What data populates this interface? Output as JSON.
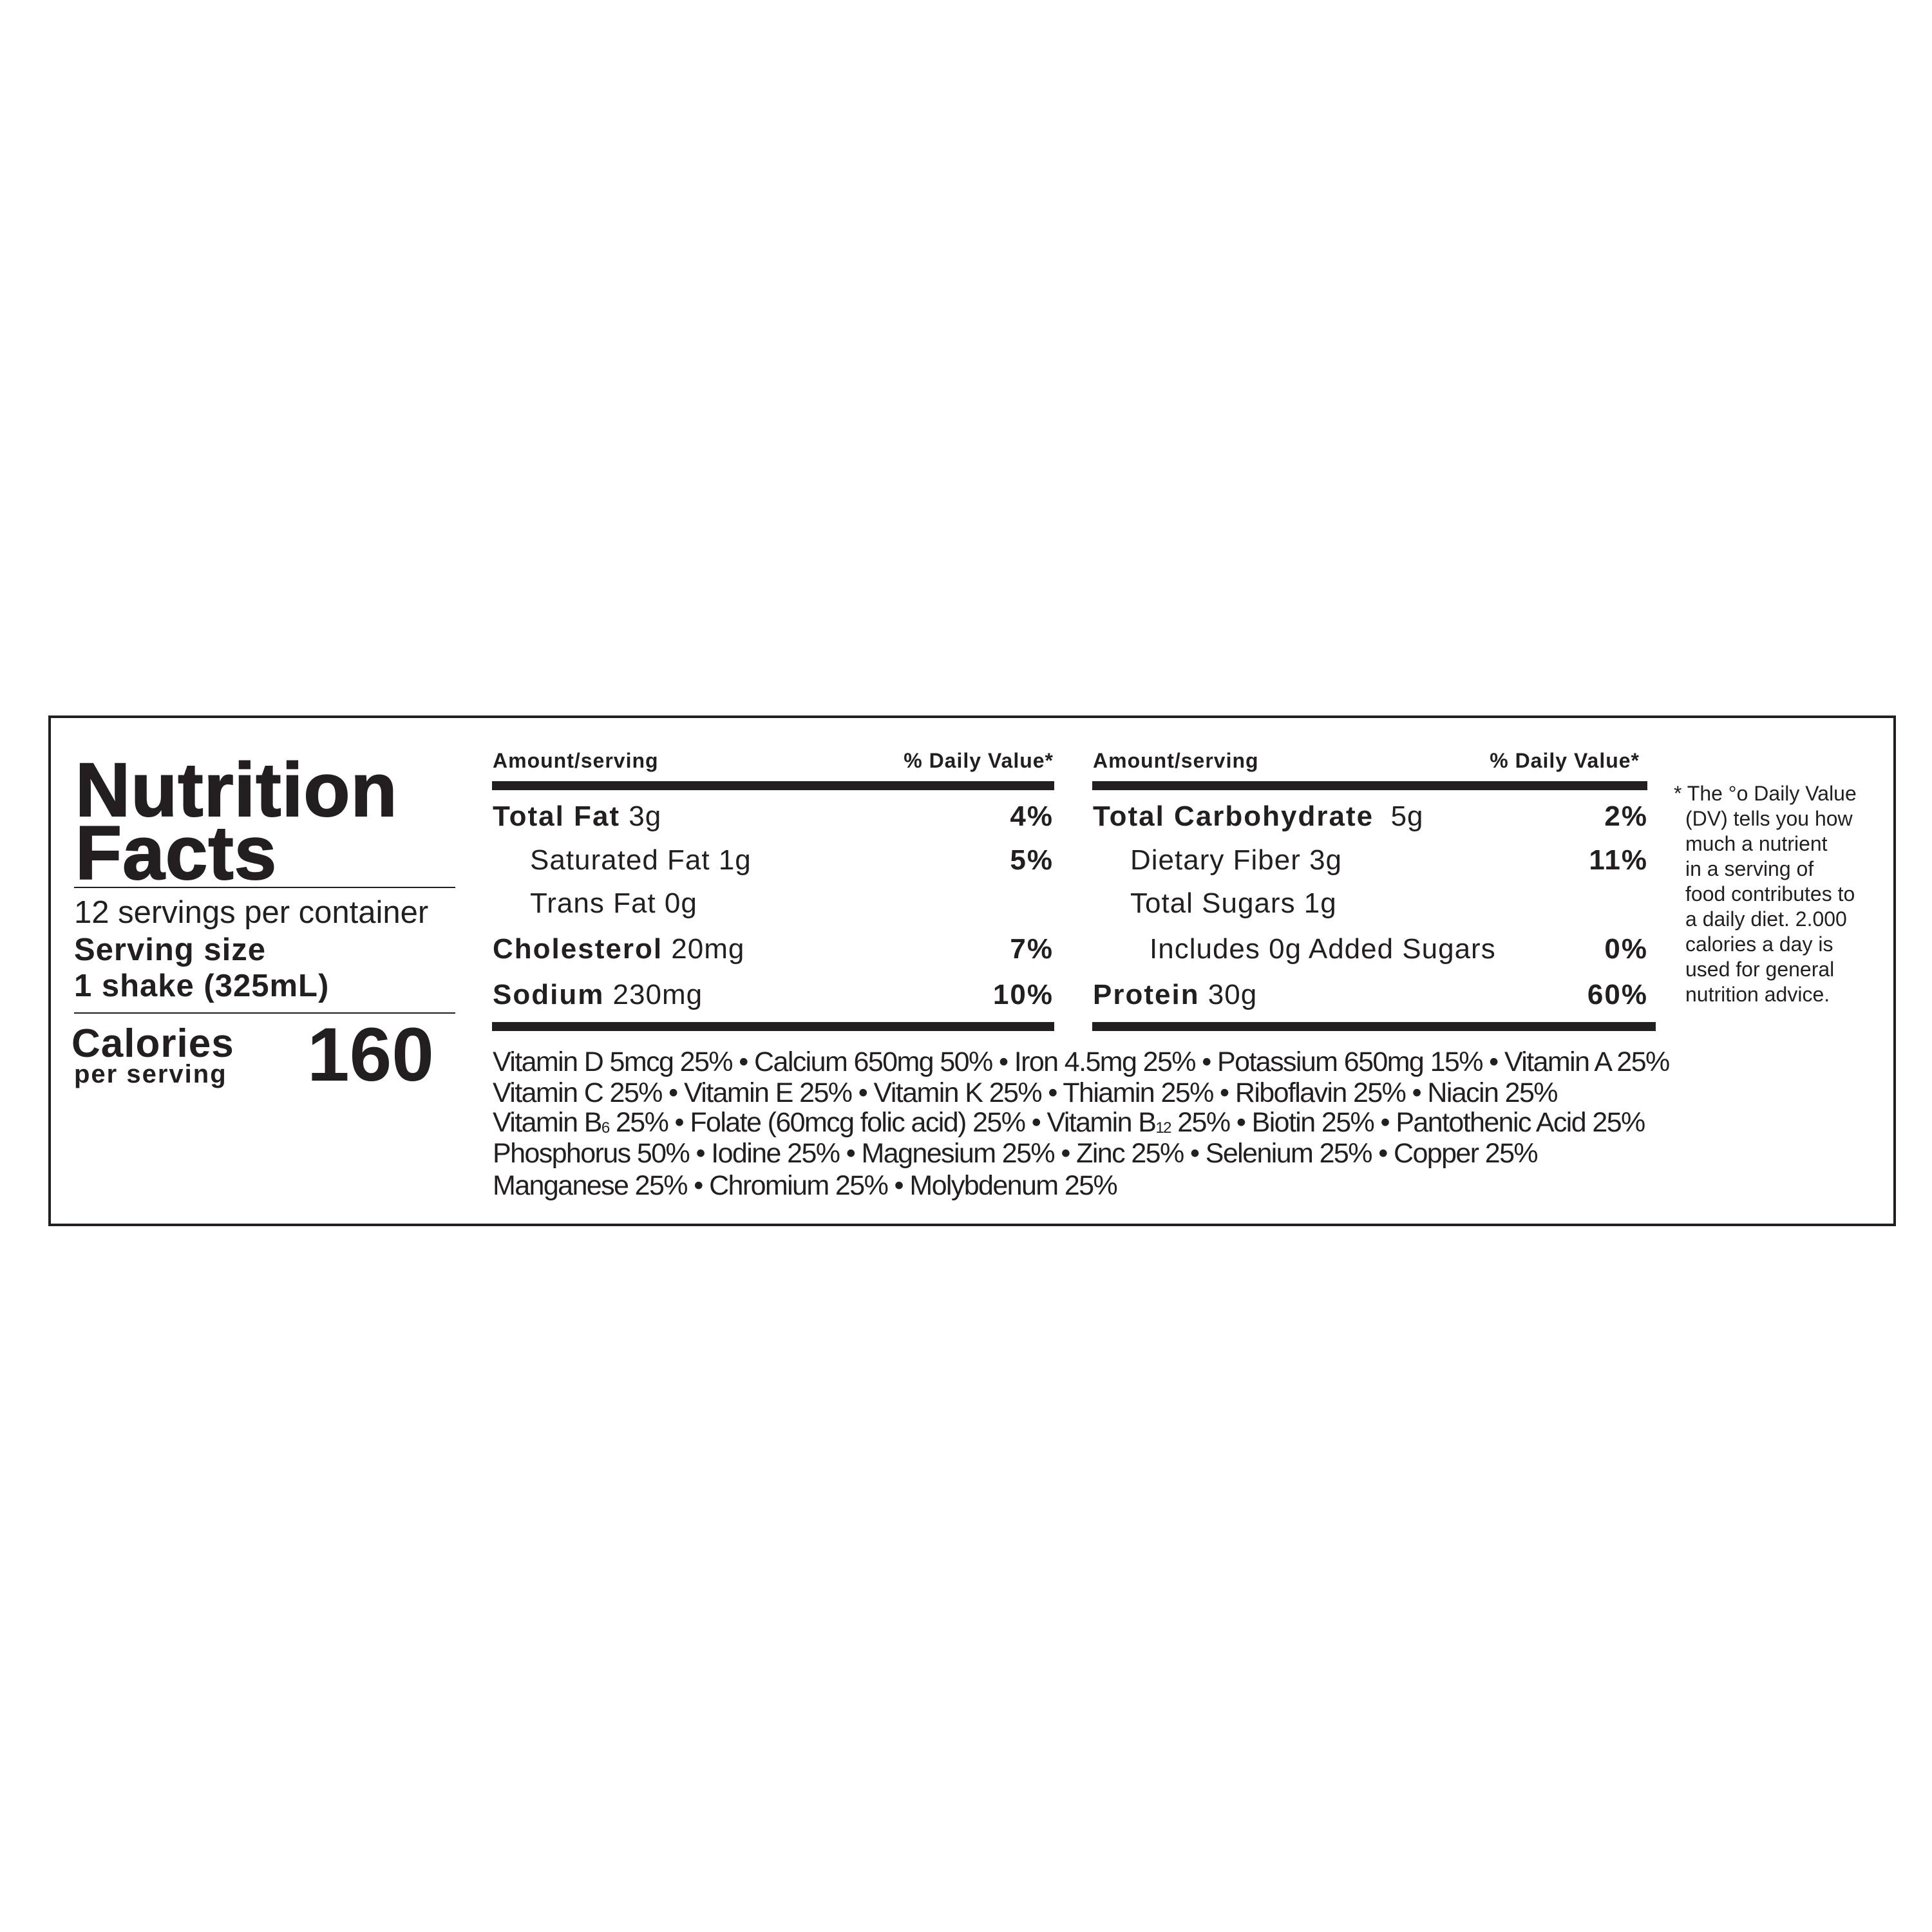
{
  "title_line1": "Nutrition",
  "title_line2": "Facts",
  "servings_per_container": "12 servings per container",
  "serving_size_label": "Serving size",
  "serving_size_value": "1 shake (325mL)",
  "calories_label": "Calories",
  "per_serving_label": "per serving",
  "calories_value": "160",
  "left_table": {
    "header_amount": "Amount/serving",
    "header_dv": "% Daily Value*",
    "rows": [
      {
        "name": "Total Fat",
        "amount": "3g",
        "dv": "4%",
        "bold": true
      },
      {
        "name": "Saturated Fat",
        "amount": "1g",
        "dv": "5%",
        "bold": false
      },
      {
        "name": "Trans Fat",
        "amount": "0g",
        "dv": "",
        "bold": false
      },
      {
        "name": "Cholesterol",
        "amount": "20mg",
        "dv": "7%",
        "bold": true
      },
      {
        "name": "Sodium",
        "amount": "230mg",
        "dv": "10%",
        "bold": true
      }
    ]
  },
  "right_table": {
    "header_amount": "Amount/serving",
    "header_dv": "% Daily Value*",
    "rows": [
      {
        "name": "Total Carbohydrate",
        "amount": "5g",
        "dv": "2%",
        "bold": true
      },
      {
        "name": "Dietary Fiber",
        "amount": "3g",
        "dv": "11%",
        "bold": false
      },
      {
        "name": "Total Sugars",
        "amount": "1g",
        "dv": "",
        "bold": false
      },
      {
        "name": "Includes 0g Added Sugars",
        "amount": "",
        "dv": "0%",
        "bold": false
      },
      {
        "name": "Protein",
        "amount": "30g",
        "dv": "60%",
        "bold": true
      }
    ]
  },
  "footnote": "* The % Daily Value (DV) tells you how much a nutrient in a serving of food contributes to a daily diet. 2.000 calories a day is used for general nutrition advice.",
  "footnote_lines": [
    "* The °o Daily Value",
    "(DV) tells you how",
    "much a nutrient",
    "in a serving of",
    "food contributes to",
    "a daily diet. 2.000",
    "calories a day is",
    "used for general",
    "nutrition advice."
  ],
  "vitamin_lines": [
    "Vitamin D 5mcg 25% • Calcium 650mg 50% • Iron 4.5mg 25% • Potassium 650mg 15% • Vitamin A 25%",
    "Vitamin C 25% • Vitamin E 25% • Vitamin K 25% • Thiamin 25% • Riboflavin 25% • Niacin 25%",
    [
      "Vitamin B",
      "6",
      " 25% • Folate (60mcg folic acid) 25% • Vitamin B",
      "12",
      " 25% • Biotin 25% • Pantothenic Acid 25%"
    ],
    "Phosphorus 50% • Iodine 25% • Magnesium 25% • Zinc 25% • Selenium 25% • Copper 25%",
    "Manganese 25% • Chromium 25% • Molybdenum 25%"
  ]
}
